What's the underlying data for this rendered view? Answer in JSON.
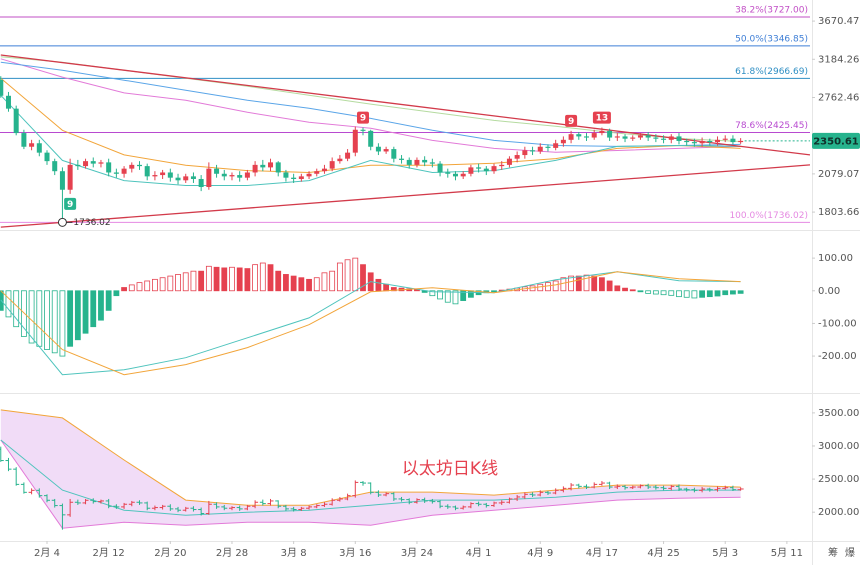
{
  "chart_data": [
    {
      "type": "candlestick",
      "x": [
        0,
        1,
        2,
        3,
        4,
        5,
        6,
        7,
        8,
        9,
        10,
        11,
        12,
        13,
        14,
        15,
        16,
        17,
        18,
        19,
        20,
        21,
        22,
        23,
        24,
        25,
        26,
        27,
        28,
        29,
        30,
        31,
        32,
        33,
        34,
        35,
        36,
        37,
        38,
        39,
        40,
        41,
        42,
        43,
        44,
        45,
        46,
        47,
        48,
        49,
        50,
        51,
        52,
        53,
        54,
        55,
        56,
        57,
        58,
        59,
        60,
        61,
        62,
        63,
        64,
        65,
        66,
        67,
        68,
        69,
        70,
        71,
        72,
        73,
        74,
        75,
        76,
        77,
        78,
        79,
        80,
        81,
        82,
        83,
        84,
        85,
        86,
        87,
        88,
        89,
        90,
        91,
        92,
        93,
        94,
        95,
        96
      ],
      "open": [
        2950,
        2780,
        2650,
        2420,
        2300,
        2330,
        2250,
        2180,
        2100,
        1960,
        2150,
        2140,
        2180,
        2160,
        2170,
        2090,
        2080,
        2120,
        2150,
        2140,
        2060,
        2070,
        2090,
        2050,
        2030,
        2060,
        2040,
        1980,
        2120,
        2080,
        2060,
        2070,
        2050,
        2090,
        2150,
        2130,
        2170,
        2090,
        2050,
        2040,
        2060,
        2080,
        2100,
        2120,
        2180,
        2200,
        2250,
        2450,
        2440,
        2300,
        2260,
        2280,
        2200,
        2190,
        2150,
        2190,
        2170,
        2160,
        2090,
        2080,
        2060,
        2080,
        2130,
        2120,
        2100,
        2140,
        2150,
        2200,
        2230,
        2270,
        2260,
        2300,
        2290,
        2330,
        2360,
        2410,
        2390,
        2380,
        2420,
        2440,
        2380,
        2390,
        2370,
        2380,
        2400,
        2380,
        2370,
        2360,
        2390,
        2350,
        2340,
        2330,
        2350,
        2340,
        2360,
        2370,
        2340
      ],
      "high": [
        2990,
        2820,
        2680,
        2450,
        2360,
        2360,
        2270,
        2200,
        2130,
        2200,
        2190,
        2200,
        2210,
        2190,
        2200,
        2120,
        2140,
        2170,
        2180,
        2160,
        2100,
        2110,
        2120,
        2080,
        2080,
        2090,
        2070,
        2170,
        2150,
        2110,
        2090,
        2100,
        2110,
        2180,
        2190,
        2200,
        2180,
        2110,
        2080,
        2080,
        2100,
        2120,
        2150,
        2210,
        2230,
        2280,
        2480,
        2470,
        2450,
        2330,
        2300,
        2300,
        2230,
        2210,
        2210,
        2220,
        2200,
        2180,
        2120,
        2100,
        2100,
        2150,
        2160,
        2140,
        2160,
        2180,
        2220,
        2260,
        2300,
        2300,
        2330,
        2320,
        2360,
        2390,
        2440,
        2430,
        2420,
        2450,
        2470,
        2460,
        2420,
        2410,
        2400,
        2420,
        2430,
        2410,
        2400,
        2410,
        2420,
        2370,
        2370,
        2380,
        2370,
        2390,
        2400,
        2400,
        2375
      ],
      "low": [
        2760,
        2620,
        2400,
        2280,
        2270,
        2220,
        2150,
        2070,
        1736.02,
        1930,
        2110,
        2120,
        2130,
        2130,
        2060,
        2050,
        2050,
        2090,
        2110,
        2030,
        2030,
        2040,
        2020,
        2000,
        2010,
        2010,
        1950,
        1960,
        2050,
        2030,
        2030,
        2020,
        2030,
        2060,
        2100,
        2100,
        2060,
        2020,
        2010,
        2020,
        2040,
        2060,
        2080,
        2100,
        2160,
        2180,
        2220,
        2400,
        2270,
        2230,
        2240,
        2170,
        2160,
        2120,
        2130,
        2140,
        2130,
        2060,
        2050,
        2030,
        2040,
        2060,
        2090,
        2070,
        2080,
        2110,
        2130,
        2170,
        2200,
        2230,
        2240,
        2260,
        2270,
        2300,
        2330,
        2360,
        2350,
        2360,
        2400,
        2350,
        2350,
        2340,
        2350,
        2360,
        2350,
        2340,
        2330,
        2330,
        2320,
        2310,
        2300,
        2300,
        2310,
        2310,
        2340,
        2320,
        2325
      ],
      "close": [
        2780,
        2650,
        2420,
        2300,
        2330,
        2250,
        2180,
        2100,
        1960,
        2150,
        2140,
        2180,
        2160,
        2170,
        2090,
        2080,
        2120,
        2150,
        2140,
        2060,
        2070,
        2090,
        2050,
        2030,
        2060,
        2040,
        1980,
        2120,
        2080,
        2060,
        2070,
        2050,
        2090,
        2150,
        2130,
        2170,
        2090,
        2050,
        2040,
        2060,
        2080,
        2100,
        2120,
        2180,
        2200,
        2250,
        2450,
        2440,
        2300,
        2260,
        2280,
        2200,
        2190,
        2150,
        2190,
        2170,
        2160,
        2090,
        2080,
        2060,
        2080,
        2130,
        2120,
        2100,
        2140,
        2150,
        2200,
        2230,
        2270,
        2260,
        2300,
        2290,
        2330,
        2360,
        2410,
        2390,
        2380,
        2420,
        2440,
        2380,
        2390,
        2370,
        2380,
        2400,
        2380,
        2370,
        2360,
        2390,
        2350,
        2340,
        2330,
        2350,
        2340,
        2360,
        2370,
        2340,
        2350.61
      ],
      "up_color": "#e5414f",
      "down_color": "#26b38d",
      "log_scale": true,
      "xlim": [
        -0.1,
        105
      ],
      "ylim": [
        1700,
        3970
      ],
      "yticks": [
        3670.47,
        3184.26,
        2762.46,
        2079.07,
        1803.66
      ],
      "fib_levels": [
        {
          "label": "38.2%(3727.00)",
          "value": 3727,
          "color": "#c24fc6"
        },
        {
          "label": "50.0%(3346.85)",
          "value": 3346.85,
          "color": "#3f7fd6"
        },
        {
          "label": "61.8%(2966.69)",
          "value": 2966.69,
          "color": "#2f8fc4"
        },
        {
          "label": "78.6%(2425.45)",
          "value": 2425.45,
          "color": "#b84ad0"
        },
        {
          "label": "100.0%(1736.02)",
          "value": 1736.02,
          "color": "#e58ae2"
        }
      ],
      "trendlines": [
        {
          "color": "#d23a4a",
          "x": [
            0,
            105
          ],
          "values": [
            3236,
            2231
          ]
        },
        {
          "color": "#d23a4a",
          "x": [
            0,
            105
          ],
          "values": [
            1706,
            2150
          ]
        }
      ],
      "lines": [
        {
          "color": "#e27ad8",
          "x": [
            0,
            8,
            16,
            24,
            32,
            40,
            48,
            56,
            64,
            72,
            80,
            88,
            96
          ],
          "values": [
            3190,
            2980,
            2810,
            2734,
            2614,
            2520,
            2464,
            2355,
            2286,
            2253,
            2268,
            2286,
            2303
          ]
        },
        {
          "color": "#5aa5e8",
          "x": [
            0,
            8,
            16,
            24,
            32,
            40,
            48,
            56,
            64,
            72,
            80,
            88,
            96
          ],
          "values": [
            3150,
            3057,
            2946,
            2837,
            2734,
            2654,
            2556,
            2445,
            2355,
            2311,
            2303,
            2311,
            2320
          ]
        },
        {
          "color": "#b5dba0",
          "x": [
            0,
            8,
            16,
            24,
            32,
            40,
            48,
            56,
            64,
            72,
            80,
            88,
            96
          ],
          "values": [
            3214,
            3150,
            3057,
            2968,
            2880,
            2785,
            2695,
            2614,
            2537,
            2482,
            2420,
            2372,
            2345
          ]
        },
        {
          "color": "#f2a53a",
          "x": [
            0,
            8,
            16,
            24,
            32,
            40,
            48,
            56,
            64,
            72,
            80,
            88,
            96
          ],
          "values": [
            2968,
            2445,
            2231,
            2147,
            2105,
            2090,
            2147,
            2147,
            2163,
            2201,
            2286,
            2311,
            2286
          ]
        },
        {
          "color": "#4fc4bd",
          "x": [
            0,
            8,
            16,
            24,
            32,
            40,
            48,
            56,
            64,
            72,
            80,
            88,
            96
          ],
          "values": [
            2785,
            2186,
            2028,
            1991,
            1991,
            2028,
            2186,
            2090,
            2105,
            2186,
            2303,
            2311,
            2303
          ]
        }
      ],
      "markers": [
        {
          "text": "9",
          "x": 9,
          "position": "below",
          "color": "#26b38d"
        },
        {
          "text": "9",
          "x": 47,
          "position": "above",
          "color": "#e5414f"
        },
        {
          "text": "9",
          "x": 74,
          "position": "above",
          "color": "#e5414f"
        },
        {
          "text": "13",
          "x": 78,
          "position": "above",
          "color": "#e5414f"
        }
      ],
      "low_mark": {
        "x": 8,
        "value": 1736.02
      }
    },
    {
      "type": "macd",
      "histogram": [
        -60,
        -80,
        -110,
        -140,
        -160,
        -170,
        -180,
        -190,
        -200,
        -170,
        -150,
        -130,
        -110,
        -90,
        -60,
        -15,
        10,
        18,
        25,
        30,
        35,
        40,
        45,
        50,
        55,
        60,
        60,
        75,
        72,
        70,
        72,
        70,
        68,
        80,
        85,
        80,
        60,
        50,
        45,
        40,
        35,
        40,
        55,
        60,
        85,
        95,
        100,
        80,
        55,
        35,
        20,
        10,
        8,
        6,
        4,
        -5,
        -15,
        -25,
        -35,
        -40,
        -30,
        -20,
        -12,
        -6,
        -2,
        2,
        5,
        8,
        12,
        15,
        20,
        25,
        30,
        40,
        45,
        45,
        48,
        45,
        40,
        30,
        15,
        8,
        3,
        -3,
        -8,
        -10,
        -12,
        -14,
        -18,
        -20,
        -22,
        -20,
        -18,
        -16,
        -12,
        -10,
        -8
      ],
      "up_color": "#e5414f",
      "down_color": "#26b38d",
      "lines": [
        {
          "color": "#4fc4bd",
          "x": [
            0,
            8,
            16,
            24,
            32,
            40,
            48,
            56,
            64,
            72,
            80,
            88,
            96
          ],
          "values": [
            -28,
            -257,
            -242,
            -205,
            -144,
            -83,
            28,
            -3,
            -6,
            34,
            58,
            31,
            28
          ]
        },
        {
          "color": "#f2a53a",
          "x": [
            0,
            8,
            16,
            24,
            32,
            40,
            48,
            56,
            64,
            72,
            80,
            88,
            96
          ],
          "values": [
            0,
            -180,
            -257,
            -226,
            -174,
            -104,
            -3,
            9,
            -6,
            18,
            58,
            37,
            28
          ]
        }
      ],
      "ylim": [
        -310,
        180
      ],
      "yticks": [
        {
          "value": 100,
          "label": "100.00"
        },
        {
          "value": 0,
          "label": "0.00"
        },
        {
          "value": -100,
          "label": "-100.00"
        },
        {
          "value": -200,
          "label": "-200.00"
        }
      ]
    },
    {
      "type": "bands",
      "annotation": "以太坊日K线",
      "annotation_color": "#e5414f",
      "fill": "#f1dcf7",
      "upper": {
        "color": "#f2a53a",
        "x": [
          0,
          8,
          16,
          24,
          32,
          40,
          48,
          56,
          64,
          72,
          80,
          88,
          96
        ],
        "values": [
          3545,
          3424,
          2788,
          2182,
          2106,
          2106,
          2303,
          2303,
          2258,
          2333,
          2409,
          2409,
          2379
        ]
      },
      "lower": {
        "color": "#e27ad8",
        "x": [
          0,
          8,
          16,
          24,
          32,
          40,
          48,
          56,
          64,
          72,
          80,
          88,
          96
        ],
        "values": [
          3091,
          1758,
          1848,
          1803,
          1848,
          1848,
          1803,
          1955,
          2030,
          2106,
          2182,
          2212,
          2227
        ]
      },
      "middle": {
        "color": "#4fc4bd",
        "x": [
          0,
          8,
          16,
          24,
          32,
          40,
          48,
          56,
          64,
          72,
          80,
          88,
          96
        ],
        "values": [
          3091,
          2333,
          2030,
          1955,
          2000,
          2030,
          2106,
          2182,
          2182,
          2227,
          2303,
          2333,
          2333
        ]
      },
      "ylim": [
        1580,
        3770
      ],
      "yticks": [
        {
          "value": 3500,
          "label": "3500.00"
        },
        {
          "value": 3000,
          "label": "3000.00"
        },
        {
          "value": 2500,
          "label": "2500.00"
        },
        {
          "value": 2000,
          "label": "2000.00"
        }
      ],
      "xticks": [
        {
          "value": 6,
          "label": "2月 4"
        },
        {
          "value": 14,
          "label": "2月 12"
        },
        {
          "value": 22,
          "label": "2月 20"
        },
        {
          "value": 30,
          "label": "2月 28"
        },
        {
          "value": 38,
          "label": "3月 8"
        },
        {
          "value": 46,
          "label": "3月 16"
        },
        {
          "value": 54,
          "label": "3月 24"
        },
        {
          "value": 62,
          "label": "4月 1"
        },
        {
          "value": 70,
          "label": "4月 9"
        },
        {
          "value": 78,
          "label": "4月 17"
        },
        {
          "value": 86,
          "label": "4月 25"
        },
        {
          "value": 94,
          "label": "5月 3"
        },
        {
          "value": 102,
          "label": "5月 11"
        }
      ]
    }
  ],
  "tools": [
    "筹",
    "爆"
  ]
}
